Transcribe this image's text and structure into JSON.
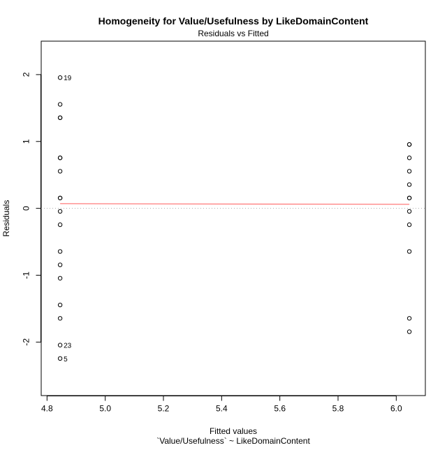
{
  "chart_data": {
    "type": "scatter",
    "title": "Homogeneity for Value/Usefulness by LikeDomainContent",
    "subtitle": "Residuals vs Fitted",
    "xlabel": "Fitted values",
    "xlabel_sub": "`Value/Usefulness` ~ LikeDomainContent",
    "ylabel": "Residuals",
    "xlim": [
      4.78,
      6.1
    ],
    "ylim": [
      -2.8,
      2.5
    ],
    "x_ticks": [
      4.8,
      5.0,
      5.2,
      5.4,
      5.6,
      5.8,
      6.0
    ],
    "x_tick_labels": [
      "4.8",
      "5.0",
      "5.2",
      "5.4",
      "5.6",
      "5.8",
      "6.0"
    ],
    "y_ticks": [
      -2,
      -1,
      0,
      1,
      2
    ],
    "y_tick_labels": [
      "-2",
      "-1",
      "0",
      "1",
      "2"
    ],
    "grid": false,
    "reference_line": {
      "y": 0,
      "style": "dotted",
      "color": "#aaaaaa"
    },
    "smooth_line": {
      "x": [
        4.845,
        6.045
      ],
      "y": [
        0.07,
        0.06
      ],
      "color": "#ff5a5a"
    },
    "point_color": "#000000",
    "series": [
      {
        "x": [
          4.845,
          4.845,
          4.845,
          4.845,
          4.845,
          4.845,
          4.845,
          4.845,
          4.845,
          4.845,
          4.845,
          4.845,
          4.845,
          4.845,
          4.845,
          4.845,
          4.845,
          4.845
        ],
        "y": [
          1.955,
          1.555,
          1.355,
          0.755,
          0.555,
          0.155,
          -0.045,
          -0.245,
          -0.645,
          -0.845,
          -1.045,
          -1.445,
          -1.645,
          -2.045,
          -2.245,
          1.355,
          0.755,
          0.155
        ]
      },
      {
        "x": [
          6.045,
          6.045,
          6.045,
          6.045,
          6.045,
          6.045,
          6.045,
          6.045,
          6.045,
          6.045,
          6.045,
          6.045
        ],
        "y": [
          0.955,
          0.755,
          0.555,
          0.355,
          0.155,
          -0.045,
          -0.245,
          -0.645,
          -1.645,
          -1.845,
          0.955,
          0.155
        ]
      }
    ],
    "point_labels": [
      {
        "text": "19",
        "x": 4.845,
        "y": 1.955
      },
      {
        "text": "23",
        "x": 4.845,
        "y": -2.045
      },
      {
        "text": "5",
        "x": 4.845,
        "y": -2.245
      }
    ]
  }
}
